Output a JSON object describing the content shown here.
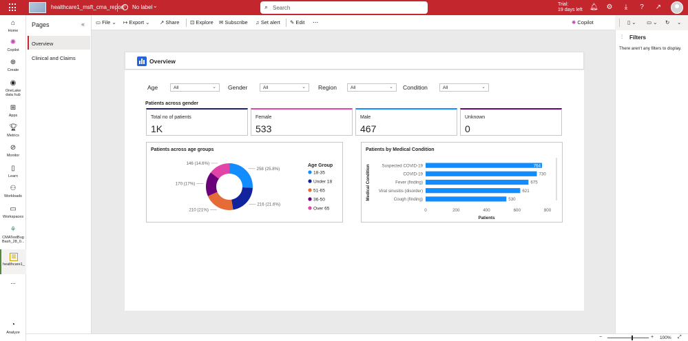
{
  "topbar": {
    "report_name": "healthcare1_msft_cma_report",
    "sensitivity_label": "No label",
    "search_placeholder": "Search",
    "trial_line1": "Trial:",
    "trial_line2": "19 days left"
  },
  "rail": {
    "items": [
      {
        "label": "Home",
        "icon": "home-icon"
      },
      {
        "label": "Copilot",
        "icon": "copilot-icon"
      },
      {
        "label": "Create",
        "icon": "create-icon"
      },
      {
        "label": "OneLake data hub",
        "icon": "onelake-icon"
      },
      {
        "label": "Apps",
        "icon": "apps-icon"
      },
      {
        "label": "Metrics",
        "icon": "metrics-icon"
      },
      {
        "label": "Monitor",
        "icon": "monitor-icon"
      },
      {
        "label": "Learn",
        "icon": "learn-icon"
      },
      {
        "label": "Workloads",
        "icon": "workloads-icon"
      },
      {
        "label": "Workspaces",
        "icon": "workspaces-icon"
      },
      {
        "label": "CMATestBug Bash_28_0...",
        "icon": "workspace-icon"
      },
      {
        "label": "healthcare1_msft_cma_...",
        "icon": "report-icon"
      },
      {
        "label": "...",
        "icon": "more-icon"
      },
      {
        "label": "Analyze",
        "icon": "analyze-icon"
      }
    ]
  },
  "pages_pane": {
    "title": "Pages",
    "pages": [
      "Overview",
      "Clinical and Claims"
    ]
  },
  "commandbar": {
    "file": "File",
    "export": "Export",
    "share": "Share",
    "explore": "Explore",
    "subscribe": "Subscribe",
    "set_alert": "Set alert",
    "edit": "Edit",
    "more": "...",
    "copilot": "Copilot"
  },
  "report": {
    "title": "Overview",
    "slicers": [
      {
        "label": "Age",
        "value": "All"
      },
      {
        "label": "Gender",
        "value": "All"
      },
      {
        "label": "Region",
        "value": "All"
      },
      {
        "label": "Condition",
        "value": "All"
      }
    ],
    "section_title": "Patients across gender",
    "cards": [
      {
        "title": "Total no of patients",
        "value": "1K",
        "color": "#1f1f6e"
      },
      {
        "title": "Female",
        "value": "533",
        "color": "#e044a7"
      },
      {
        "title": "Male",
        "value": "467",
        "color": "#118dff"
      },
      {
        "title": "Unknown",
        "value": "0",
        "color": "#6b007b"
      }
    ]
  },
  "chart_data": [
    {
      "type": "pie",
      "title": "Patients across age groups",
      "legend_title": "Age Group",
      "legend_position": "right",
      "slices": [
        {
          "label": "18-35",
          "value": 258,
          "pct": "25.8%",
          "color": "#118dff"
        },
        {
          "label": "Under 18",
          "value": 216,
          "pct": "21.6%",
          "color": "#12239e"
        },
        {
          "label": "51-65",
          "value": 210,
          "pct": "21%",
          "color": "#e66c37"
        },
        {
          "label": "36-50",
          "value": 170,
          "pct": "17%",
          "color": "#6b007b"
        },
        {
          "label": "Over 65",
          "value": 146,
          "pct": "14.6%",
          "color": "#e044a7"
        }
      ],
      "data_labels": [
        "258 (25.8%)",
        "216 (21.6%)",
        "210 (21%)",
        "170 (17%)",
        "146 (14.6%)"
      ]
    },
    {
      "type": "bar",
      "orientation": "horizontal",
      "title": "Patients by Medical Condition",
      "xlabel": "Patients",
      "ylabel": "Medical Condition",
      "categories": [
        "Suspected COVID-19",
        "COVID-19",
        "Fever (finding)",
        "Viral sinusitis (disorder)",
        "Cough (finding)"
      ],
      "values": [
        764,
        730,
        675,
        621,
        530
      ],
      "xlim": [
        0,
        800
      ],
      "xticks": [
        "0",
        "200",
        "400",
        "600",
        "800"
      ],
      "color": "#118dff"
    }
  ],
  "filters_pane": {
    "title": "Filters",
    "empty_message": "There aren't any filters to display."
  },
  "statusbar": {
    "zoom": "100%"
  }
}
